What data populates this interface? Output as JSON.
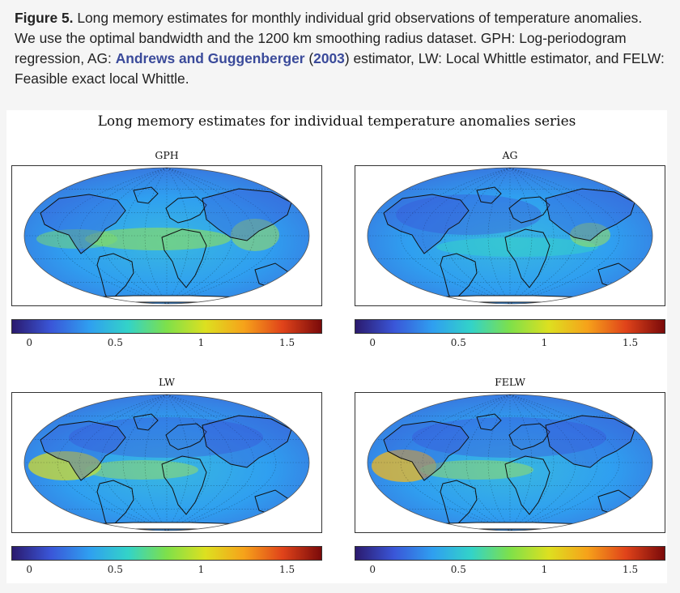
{
  "caption": {
    "label": "Figure 5.",
    "text_1": " Long memory estimates for monthly individual grid observations of temperature anomalies. We use the optimal bandwidth and the 1200 km smoothing radius dataset. GPH: Log-periodogram regression, AG: ",
    "ref_name": "Andrews and Guggenberger",
    "ref_open": " (",
    "ref_year": "2003",
    "ref_close": ")",
    "text_2": " estimator, LW: Local Whittle estimator, and FELW: Feasible exact local Whittle."
  },
  "figure": {
    "title": "Long memory estimates for individual temperature anomalies series",
    "colormap": [
      "#2b1a6e",
      "#3a56d8",
      "#2f9ff0",
      "#33d3c8",
      "#7ee04a",
      "#dde020",
      "#f6a21a",
      "#e0431a",
      "#7a0a0a"
    ],
    "colorbar_range": [
      -0.1,
      1.7
    ],
    "colorbar_ticks": [
      "0",
      "0.5",
      "1",
      "1.5"
    ],
    "panels": [
      {
        "title": "GPH"
      },
      {
        "title": "AG"
      },
      {
        "title": "LW"
      },
      {
        "title": "FELW"
      }
    ]
  }
}
